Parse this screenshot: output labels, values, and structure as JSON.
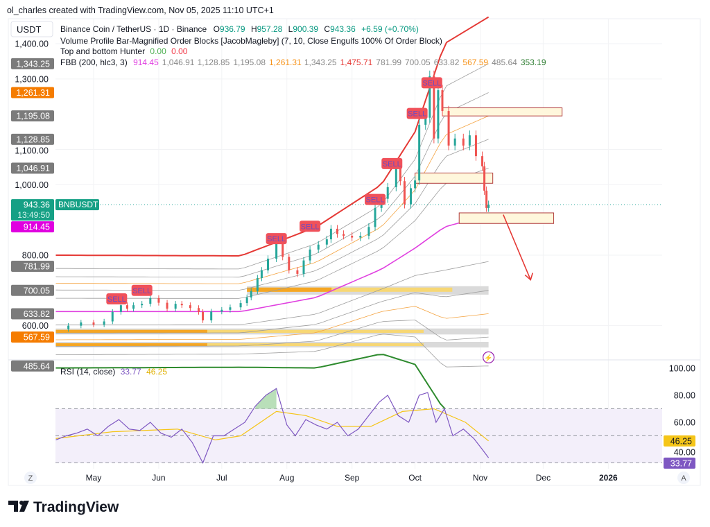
{
  "header": {
    "credit": "ol_charles created with TradingView.com, Nov 05, 2025 11:10 UTC+1"
  },
  "legend": {
    "currency": "USDT",
    "symbol": "Binance Coin / TetherUS · 1D · Binance",
    "o_label": "O",
    "o": "936.79",
    "h_label": "H",
    "h": "957.28",
    "l_label": "L",
    "l": "900.39",
    "c_label": "C",
    "c": "943.36",
    "change": "+6.59 (+0.70%)",
    "ind1": "Volume Profile Bar-Magnified Order Blocks [JacobMagleby] (7, 10, Close Engulfs 100% Of Order Block)",
    "ind2": "Top and bottom Hunter",
    "ind2_v1": "0.00",
    "ind2_v2": "0.00",
    "fbb": "FBB (200, hlc3, 3)",
    "fbb_values": [
      {
        "v": "914.45",
        "color": "#e040e0"
      },
      {
        "v": "1,046.91",
        "color": "#888888"
      },
      {
        "v": "1,128.85",
        "color": "#888888"
      },
      {
        "v": "1,195.08",
        "color": "#888888"
      },
      {
        "v": "1,261.31",
        "color": "#f7931a"
      },
      {
        "v": "1,343.25",
        "color": "#888888"
      },
      {
        "v": "1,475.71",
        "color": "#e53935"
      },
      {
        "v": "781.99",
        "color": "#888888"
      },
      {
        "v": "700.05",
        "color": "#888888"
      },
      {
        "v": "633.82",
        "color": "#888888"
      },
      {
        "v": "567.59",
        "color": "#f7931a"
      },
      {
        "v": "485.64",
        "color": "#888888"
      },
      {
        "v": "353.19",
        "color": "#2e7d32"
      }
    ],
    "rsi": "RSI (14, close)",
    "rsi_v": "33.77",
    "rsi_ma_v": "46.25"
  },
  "colors": {
    "up": "#26a69a",
    "down": "#ef5350",
    "basis": "#e040e0",
    "upper": "#e53935",
    "lower": "#2e8b2e",
    "mid": "#f4a340",
    "band": "#9e9e9e",
    "rsi": "#7e57c2",
    "rsi_ma": "#f5c518"
  },
  "chart_data": [
    {
      "type": "candlestick",
      "ylim": [
        300,
        1470
      ],
      "y_ticks": [
        "1,400.00",
        "1,300.00",
        "1,100.00",
        "1,000.00",
        "800.00",
        "600.00"
      ],
      "y_tick_values": [
        1400,
        1300,
        1100,
        1000,
        800,
        600
      ],
      "x_ticks": [
        {
          "label": "May",
          "date": "2025-05-01"
        },
        {
          "label": "Jun",
          "date": "2025-06-01"
        },
        {
          "label": "Jul",
          "date": "2025-07-01"
        },
        {
          "label": "Aug",
          "date": "2025-08-01"
        },
        {
          "label": "Sep",
          "date": "2025-09-01"
        },
        {
          "label": "Oct",
          "date": "2025-10-01"
        },
        {
          "label": "Nov",
          "date": "2025-11-01"
        },
        {
          "label": "Dec",
          "date": "2025-12-01"
        },
        {
          "label": "2026",
          "date": "2026-01-01",
          "bold": true
        }
      ],
      "closes": [
        [
          "2025-04-13",
          590
        ],
        [
          "2025-04-19",
          600
        ],
        [
          "2025-04-25",
          609
        ],
        [
          "2025-05-01",
          603
        ],
        [
          "2025-05-06",
          612
        ],
        [
          "2025-05-10",
          639
        ],
        [
          "2025-05-14",
          658
        ],
        [
          "2025-05-17",
          648
        ],
        [
          "2025-05-20",
          658
        ],
        [
          "2025-05-24",
          662
        ],
        [
          "2025-05-28",
          678
        ],
        [
          "2025-06-01",
          665
        ],
        [
          "2025-06-05",
          648
        ],
        [
          "2025-06-09",
          662
        ],
        [
          "2025-06-12",
          658
        ],
        [
          "2025-06-16",
          650
        ],
        [
          "2025-06-20",
          639
        ],
        [
          "2025-06-22",
          615
        ],
        [
          "2025-06-26",
          640
        ],
        [
          "2025-07-01",
          645
        ],
        [
          "2025-07-05",
          652
        ],
        [
          "2025-07-10",
          664
        ],
        [
          "2025-07-13",
          680
        ],
        [
          "2025-07-15",
          698
        ],
        [
          "2025-07-18",
          735
        ],
        [
          "2025-07-20",
          757
        ],
        [
          "2025-07-23",
          790
        ],
        [
          "2025-07-27",
          835
        ],
        [
          "2025-07-30",
          795
        ],
        [
          "2025-08-02",
          757
        ],
        [
          "2025-08-06",
          747
        ],
        [
          "2025-08-09",
          785
        ],
        [
          "2025-08-12",
          816
        ],
        [
          "2025-08-16",
          830
        ],
        [
          "2025-08-20",
          845
        ],
        [
          "2025-08-22",
          875
        ],
        [
          "2025-08-25",
          860
        ],
        [
          "2025-08-28",
          855
        ],
        [
          "2025-09-01",
          850
        ],
        [
          "2025-09-05",
          855
        ],
        [
          "2025-09-09",
          880
        ],
        [
          "2025-09-12",
          934
        ],
        [
          "2025-09-15",
          960
        ],
        [
          "2025-09-18",
          993
        ],
        [
          "2025-09-22",
          1052
        ],
        [
          "2025-09-24",
          1010
        ],
        [
          "2025-09-26",
          944
        ],
        [
          "2025-09-29",
          990
        ],
        [
          "2025-10-01",
          1012
        ],
        [
          "2025-10-03",
          1170
        ],
        [
          "2025-10-06",
          1190
        ],
        [
          "2025-10-08",
          1308
        ],
        [
          "2025-10-10",
          1131
        ],
        [
          "2025-10-12",
          1268
        ],
        [
          "2025-10-14",
          1209
        ],
        [
          "2025-10-17",
          1111
        ],
        [
          "2025-10-20",
          1131
        ],
        [
          "2025-10-24",
          1111
        ],
        [
          "2025-10-27",
          1140
        ],
        [
          "2025-10-30",
          1081
        ],
        [
          "2025-11-02",
          1052
        ],
        [
          "2025-11-03",
          983
        ],
        [
          "2025-11-04",
          934
        ],
        [
          "2025-11-05",
          943.36
        ]
      ],
      "fbb": {
        "ratios": [
          0.236,
          0.382,
          0.5,
          0.618,
          0.764,
          1
        ],
        "basis": [
          [
            "2025-04-13",
            640
          ],
          [
            "2025-07-10",
            640
          ],
          [
            "2025-08-15",
            680
          ],
          [
            "2025-09-15",
            760
          ],
          [
            "2025-10-01",
            820
          ],
          [
            "2025-10-15",
            880
          ],
          [
            "2025-11-05",
            914.45
          ]
        ],
        "upper": [
          [
            "2025-04-13",
            800
          ],
          [
            "2025-07-10",
            798
          ],
          [
            "2025-08-15",
            880
          ],
          [
            "2025-09-15",
            1000
          ],
          [
            "2025-10-01",
            1150
          ],
          [
            "2025-10-15",
            1400
          ],
          [
            "2025-11-05",
            1475.71
          ]
        ]
      },
      "sell_signals": [
        {
          "label": "SELL",
          "date": "2025-05-12",
          "price": 676
        },
        {
          "label": "SELL",
          "date": "2025-05-24",
          "price": 700
        },
        {
          "label": "SELL",
          "date": "2025-07-27",
          "price": 847
        },
        {
          "label": "SELL",
          "date": "2025-08-12",
          "price": 882
        },
        {
          "label": "SELL",
          "date": "2025-09-12",
          "price": 958
        },
        {
          "label": "SELL",
          "date": "2025-09-20",
          "price": 1060
        },
        {
          "label": "SELL",
          "date": "2025-10-02",
          "price": 1202
        },
        {
          "label": "SELL",
          "date": "2025-10-09",
          "price": 1289
        }
      ],
      "order_blocks": [
        {
          "from": "2025-10-14",
          "to": "2025-12-10",
          "top": 1218,
          "bottom": 1195
        },
        {
          "from": "2025-10-01",
          "to": "2025-11-07",
          "top": 1033,
          "bottom": 1004
        },
        {
          "from": "2025-10-22",
          "to": "2025-12-06",
          "top": 920,
          "bottom": 890
        }
      ],
      "volume_zones": [
        {
          "from": "2025-07-13",
          "to": "2025-11-05",
          "top": 712,
          "bottom": 688
        },
        {
          "from": "2025-04-13",
          "to": "2025-11-05",
          "top": 592,
          "bottom": 575
        },
        {
          "from": "2025-04-13",
          "to": "2025-11-05",
          "top": 554,
          "bottom": 538
        }
      ],
      "projection_arrow": {
        "from": [
          "2025-11-12",
          915
        ],
        "to": [
          "2025-11-25",
          730
        ]
      },
      "last_price": {
        "value": "943.36",
        "countdown": "13:49:50",
        "symbol": "BNBUSDT"
      }
    },
    {
      "type": "line",
      "ylim": [
        25,
        100
      ],
      "y_ticks": [
        "100.00",
        "80.00",
        "60.00",
        "40.00"
      ],
      "y_tick_values": [
        100,
        80,
        60,
        40
      ],
      "bands": [
        30,
        50,
        70
      ],
      "series": [
        {
          "name": "RSI",
          "values": [
            [
              "2025-04-13",
              47
            ],
            [
              "2025-04-18",
              50
            ],
            [
              "2025-04-23",
              52
            ],
            [
              "2025-04-28",
              55
            ],
            [
              "2025-05-03",
              50
            ],
            [
              "2025-05-08",
              57
            ],
            [
              "2025-05-13",
              62
            ],
            [
              "2025-05-18",
              55
            ],
            [
              "2025-05-23",
              54
            ],
            [
              "2025-05-28",
              60
            ],
            [
              "2025-06-02",
              52
            ],
            [
              "2025-06-07",
              49
            ],
            [
              "2025-06-12",
              55
            ],
            [
              "2025-06-17",
              45
            ],
            [
              "2025-06-22",
              30
            ],
            [
              "2025-06-27",
              50
            ],
            [
              "2025-07-02",
              50
            ],
            [
              "2025-07-07",
              55
            ],
            [
              "2025-07-12",
              60
            ],
            [
              "2025-07-17",
              72
            ],
            [
              "2025-07-22",
              80
            ],
            [
              "2025-07-27",
              85
            ],
            [
              "2025-08-01",
              58
            ],
            [
              "2025-08-05",
              50
            ],
            [
              "2025-08-10",
              62
            ],
            [
              "2025-08-15",
              58
            ],
            [
              "2025-08-20",
              55
            ],
            [
              "2025-08-25",
              60
            ],
            [
              "2025-08-30",
              50
            ],
            [
              "2025-09-04",
              55
            ],
            [
              "2025-09-09",
              65
            ],
            [
              "2025-09-14",
              75
            ],
            [
              "2025-09-18",
              80
            ],
            [
              "2025-09-23",
              65
            ],
            [
              "2025-09-28",
              60
            ],
            [
              "2025-10-03",
              80
            ],
            [
              "2025-10-07",
              82
            ],
            [
              "2025-10-11",
              60
            ],
            [
              "2025-10-15",
              70
            ],
            [
              "2025-10-19",
              50
            ],
            [
              "2025-10-24",
              55
            ],
            [
              "2025-10-29",
              48
            ],
            [
              "2025-11-02",
              40
            ],
            [
              "2025-11-05",
              33.77
            ]
          ]
        },
        {
          "name": "RSI MA",
          "values": [
            [
              "2025-04-13",
              48
            ],
            [
              "2025-05-10",
              53
            ],
            [
              "2025-06-10",
              55
            ],
            [
              "2025-06-28",
              47
            ],
            [
              "2025-07-10",
              50
            ],
            [
              "2025-07-27",
              68
            ],
            [
              "2025-08-10",
              65
            ],
            [
              "2025-08-25",
              57
            ],
            [
              "2025-09-10",
              57
            ],
            [
              "2025-09-25",
              68
            ],
            [
              "2025-10-10",
              70
            ],
            [
              "2025-10-25",
              60
            ],
            [
              "2025-11-05",
              46.25
            ]
          ]
        }
      ]
    }
  ],
  "footer": {
    "z_button": "Z",
    "a_button": "A",
    "brand": "TradingView"
  }
}
